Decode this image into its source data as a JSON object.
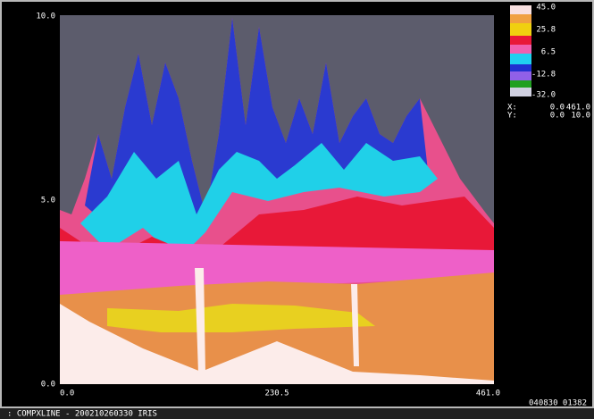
{
  "plot": {
    "yticks": [
      "10.0",
      "5.0",
      "0.0"
    ],
    "xticks": [
      "0.0",
      "230.5",
      "461.0"
    ]
  },
  "colorbar": {
    "labels": [
      "45.0",
      "25.8",
      "6.5",
      "-12.8",
      "-32.0"
    ]
  },
  "cursor": {
    "x": {
      "label": "X:",
      "from": "0.0",
      "to": "461.0"
    },
    "y": {
      "label": "Y:",
      "from": "0.0",
      "to": "10.0"
    }
  },
  "timestamp": "040830 01382",
  "footer": ": COMPXLINE - 200210260330 IRIS"
}
